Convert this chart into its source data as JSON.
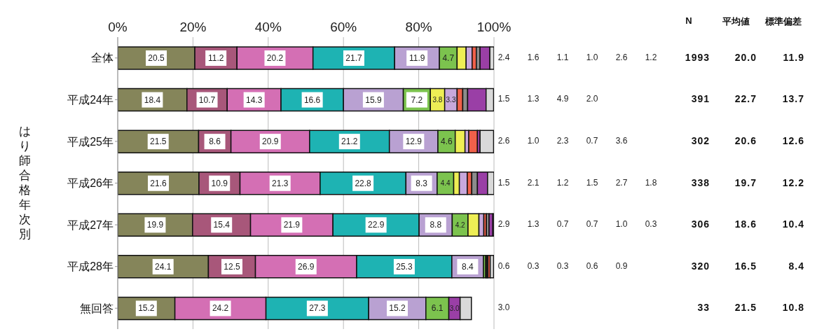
{
  "chart_data": {
    "type": "bar",
    "orientation": "horizontal",
    "stacked": true,
    "ylabel": "はり師合格年次別",
    "categories": [
      "全体",
      "平成24年",
      "平成25年",
      "平成26年",
      "平成27年",
      "平成28年",
      "無回答"
    ],
    "series": [
      {
        "color": "#85855a",
        "values": [
          20.5,
          18.4,
          21.5,
          21.6,
          19.9,
          24.1,
          15.2
        ],
        "value_labels": [
          "20.5",
          "18.4",
          "21.5",
          "21.6",
          "19.9",
          "24.1",
          "15.2"
        ]
      },
      {
        "color": "#a8577a",
        "values": [
          11.2,
          10.7,
          8.6,
          10.9,
          15.4,
          12.5,
          null
        ],
        "value_labels": [
          "11.2",
          "10.7",
          "8.6",
          "10.9",
          "15.4",
          "12.5",
          null
        ]
      },
      {
        "color": "#d46fb4",
        "values": [
          20.2,
          14.3,
          20.9,
          21.3,
          21.9,
          26.9,
          24.2
        ],
        "value_labels": [
          "20.2",
          "14.3",
          "20.9",
          "21.3",
          "21.9",
          "26.9",
          "24.2"
        ]
      },
      {
        "color": "#1eb3b3",
        "values": [
          21.7,
          16.6,
          21.2,
          22.8,
          22.9,
          25.3,
          27.3
        ],
        "value_labels": [
          "21.7",
          "16.6",
          "21.2",
          "22.8",
          "22.9",
          "25.3",
          "27.3"
        ]
      },
      {
        "color": "#b9a1d2",
        "values": [
          11.9,
          15.9,
          12.9,
          8.3,
          8.8,
          8.4,
          15.2
        ],
        "value_labels": [
          "11.9",
          "15.9",
          "12.9",
          "8.3",
          "8.8",
          "8.4",
          "15.2"
        ]
      },
      {
        "color": "#7cc34e",
        "values": [
          4.7,
          7.2,
          4.6,
          4.4,
          4.2,
          0.6,
          6.1
        ],
        "value_labels": [
          "4.7",
          "7.2",
          "4.6",
          "4.4",
          "4.2",
          null,
          "6.1"
        ]
      },
      {
        "color": "#eeee55",
        "values": [
          2.4,
          3.8,
          2.6,
          1.5,
          2.9,
          0.3,
          null
        ],
        "value_labels": [
          null,
          "3.8",
          null,
          null,
          null,
          null,
          null
        ]
      },
      {
        "color": "#c8a8dc",
        "values": [
          1.6,
          3.3,
          1.0,
          2.1,
          1.3,
          0.3,
          null
        ],
        "value_labels": [
          null,
          "3.3",
          null,
          null,
          null,
          null,
          null
        ]
      },
      {
        "color": "#f0604a",
        "values": [
          1.1,
          1.5,
          2.3,
          1.2,
          0.7,
          0.6,
          null
        ]
      },
      {
        "color": "#8c8c8c",
        "values": [
          1.0,
          1.3,
          null,
          1.5,
          0.7,
          null,
          null
        ]
      },
      {
        "color": "#9a3fa6",
        "values": [
          2.6,
          4.9,
          0.7,
          2.7,
          1.0,
          null,
          3.0
        ],
        "value_labels": [
          null,
          null,
          null,
          null,
          null,
          null,
          "3.0"
        ]
      },
      {
        "color": "#d9d9d9",
        "values": [
          1.2,
          2.0,
          3.6,
          1.8,
          0.3,
          0.9,
          3.0
        ]
      }
    ],
    "xlim": [
      0,
      100
    ],
    "xticks": [
      {
        "value": 0,
        "label": "0%"
      },
      {
        "value": 20,
        "label": "20%"
      },
      {
        "value": 40,
        "label": "40%"
      },
      {
        "value": 60,
        "label": "60%"
      },
      {
        "value": 80,
        "label": "80%"
      },
      {
        "value": 100,
        "label": "100%"
      }
    ],
    "grid": "x",
    "annotations": [
      "N",
      "平均値",
      "標準偏差",
      "2.4",
      "1.6",
      "1.1",
      "1.0",
      "2.6",
      "1.2",
      "1993",
      "20.0",
      "11.9",
      "1.5",
      "1.3",
      "4.9",
      "2.0",
      "391",
      "22.7",
      "13.7",
      "2.6",
      "1.0",
      "2.3",
      "0.7",
      "3.6",
      "302",
      "20.6",
      "12.6",
      "1.5",
      "2.1",
      "1.2",
      "1.5",
      "2.7",
      "1.8",
      "338",
      "19.7",
      "12.2",
      "2.9",
      "1.3",
      "0.7",
      "0.7",
      "1.0",
      "0.3",
      "306",
      "18.6",
      "10.4",
      "0.6",
      "0.3",
      "0.3",
      "0.6",
      "0.9",
      "320",
      "16.5",
      "8.4",
      "3.0",
      "33",
      "21.5",
      "10.8"
    ]
  }
}
